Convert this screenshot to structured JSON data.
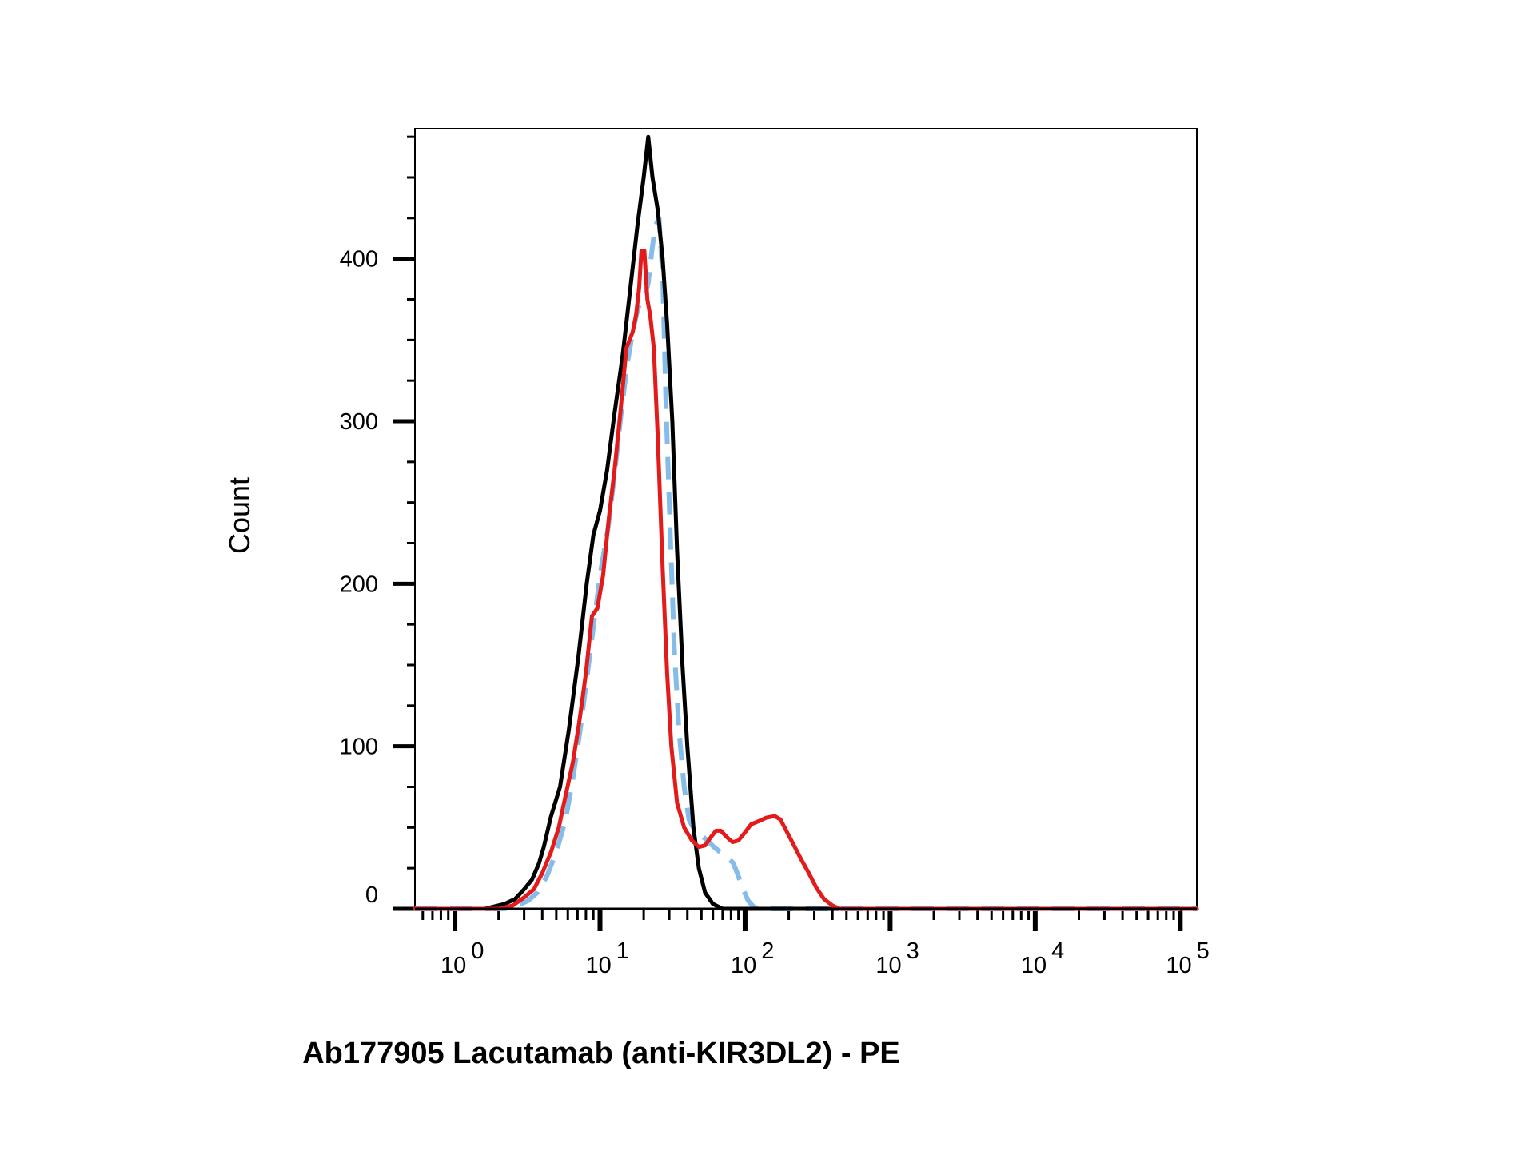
{
  "chart_data": {
    "type": "line",
    "title": "",
    "xlabel": "Ab177905 Lacutamab (anti-KIR3DL2) - PE",
    "ylabel": "Count",
    "x_scale": "log",
    "xlim": [
      0.53,
      130000
    ],
    "ylim": [
      0,
      480
    ],
    "grid": false,
    "legend": "none",
    "y_ticks": [
      {
        "value": 0,
        "label": "0"
      },
      {
        "value": 100,
        "label": "100"
      },
      {
        "value": 200,
        "label": "200"
      },
      {
        "value": 300,
        "label": "300"
      },
      {
        "value": 400,
        "label": "400"
      }
    ],
    "x_ticks": [
      {
        "value": 1,
        "base": "10",
        "exp": "0"
      },
      {
        "value": 10,
        "base": "10",
        "exp": "1"
      },
      {
        "value": 100,
        "base": "10",
        "exp": "2"
      },
      {
        "value": 1000,
        "base": "10",
        "exp": "3"
      },
      {
        "value": 10000,
        "base": "10",
        "exp": "4"
      },
      {
        "value": 100000,
        "base": "10",
        "exp": "5"
      }
    ],
    "series": [
      {
        "color": "#000000",
        "style": "solid",
        "points": [
          [
            0.53,
            0
          ],
          [
            1.6,
            0
          ],
          [
            2.2,
            3
          ],
          [
            2.6,
            6
          ],
          [
            3.0,
            12
          ],
          [
            3.4,
            18
          ],
          [
            3.8,
            28
          ],
          [
            4.1,
            38
          ],
          [
            4.6,
            57
          ],
          [
            5.3,
            75
          ],
          [
            6.1,
            110
          ],
          [
            7.1,
            155
          ],
          [
            8.1,
            200
          ],
          [
            9.0,
            230
          ],
          [
            10.0,
            245
          ],
          [
            11.2,
            270
          ],
          [
            12.6,
            305
          ],
          [
            14.3,
            340
          ],
          [
            16.1,
            380
          ],
          [
            18.1,
            420
          ],
          [
            20.0,
            450
          ],
          [
            21.5,
            475
          ],
          [
            23.0,
            450
          ],
          [
            25.0,
            430
          ],
          [
            27.0,
            400
          ],
          [
            29.0,
            360
          ],
          [
            31.5,
            300
          ],
          [
            34.0,
            220
          ],
          [
            37.0,
            150
          ],
          [
            40.0,
            100
          ],
          [
            44.0,
            50
          ],
          [
            48.0,
            25
          ],
          [
            53.0,
            10
          ],
          [
            60.0,
            3
          ],
          [
            70.0,
            0
          ],
          [
            130000,
            0
          ]
        ]
      },
      {
        "color": "#e31b1b",
        "style": "solid",
        "points": [
          [
            0.53,
            0
          ],
          [
            2.0,
            0
          ],
          [
            2.5,
            2
          ],
          [
            3.0,
            7
          ],
          [
            3.5,
            12
          ],
          [
            4.0,
            22
          ],
          [
            4.6,
            35
          ],
          [
            5.2,
            50
          ],
          [
            5.8,
            70
          ],
          [
            6.5,
            90
          ],
          [
            7.2,
            115
          ],
          [
            8.0,
            145
          ],
          [
            8.8,
            180
          ],
          [
            9.6,
            185
          ],
          [
            10.5,
            205
          ],
          [
            11.5,
            240
          ],
          [
            12.6,
            270
          ],
          [
            13.8,
            305
          ],
          [
            15.2,
            345
          ],
          [
            16.8,
            355
          ],
          [
            17.7,
            365
          ],
          [
            18.6,
            382
          ],
          [
            19.3,
            405
          ],
          [
            20.2,
            405
          ],
          [
            21.2,
            375
          ],
          [
            22.2,
            365
          ],
          [
            23.5,
            345
          ],
          [
            25.0,
            290
          ],
          [
            27.0,
            210
          ],
          [
            29.0,
            145
          ],
          [
            31.0,
            100
          ],
          [
            34.0,
            65
          ],
          [
            38.0,
            50
          ],
          [
            43.0,
            42
          ],
          [
            48.0,
            38
          ],
          [
            53.0,
            39
          ],
          [
            58.0,
            44
          ],
          [
            63.0,
            48
          ],
          [
            68.0,
            48
          ],
          [
            75.0,
            44
          ],
          [
            82.0,
            41
          ],
          [
            90.0,
            42
          ],
          [
            100.0,
            47
          ],
          [
            110.0,
            52
          ],
          [
            125.0,
            54
          ],
          [
            140.0,
            56
          ],
          [
            160.0,
            57
          ],
          [
            175.0,
            55
          ],
          [
            195.0,
            47
          ],
          [
            220.0,
            38
          ],
          [
            245.0,
            30
          ],
          [
            275.0,
            22
          ],
          [
            310.0,
            13
          ],
          [
            350.0,
            6
          ],
          [
            400.0,
            2
          ],
          [
            450.0,
            0
          ],
          [
            130000,
            0
          ]
        ]
      },
      {
        "color": "#85bcea",
        "style": "dashed",
        "points": [
          [
            0.53,
            0
          ],
          [
            2.2,
            0
          ],
          [
            2.7,
            2
          ],
          [
            3.2,
            5
          ],
          [
            3.7,
            10
          ],
          [
            4.3,
            20
          ],
          [
            5.0,
            35
          ],
          [
            5.8,
            55
          ],
          [
            6.5,
            80
          ],
          [
            7.3,
            110
          ],
          [
            8.2,
            145
          ],
          [
            9.2,
            180
          ],
          [
            10.2,
            210
          ],
          [
            11.4,
            235
          ],
          [
            12.7,
            270
          ],
          [
            14.0,
            305
          ],
          [
            15.4,
            335
          ],
          [
            16.8,
            355
          ],
          [
            18.3,
            370
          ],
          [
            20.0,
            375
          ],
          [
            21.5,
            385
          ],
          [
            22.8,
            405
          ],
          [
            24.0,
            420
          ],
          [
            25.5,
            425
          ],
          [
            27.0,
            390
          ],
          [
            28.5,
            310
          ],
          [
            30.5,
            230
          ],
          [
            32.5,
            160
          ],
          [
            35.0,
            110
          ],
          [
            38.0,
            75
          ],
          [
            41.0,
            55
          ],
          [
            45.0,
            48
          ],
          [
            50.0,
            45
          ],
          [
            55.0,
            42
          ],
          [
            61.0,
            38
          ],
          [
            67.0,
            35
          ],
          [
            75.0,
            32
          ],
          [
            83.0,
            28
          ],
          [
            90.0,
            20
          ],
          [
            97.0,
            12
          ],
          [
            105.0,
            5
          ],
          [
            115.0,
            1
          ],
          [
            130.0,
            0
          ],
          [
            130000,
            0
          ]
        ]
      }
    ]
  }
}
